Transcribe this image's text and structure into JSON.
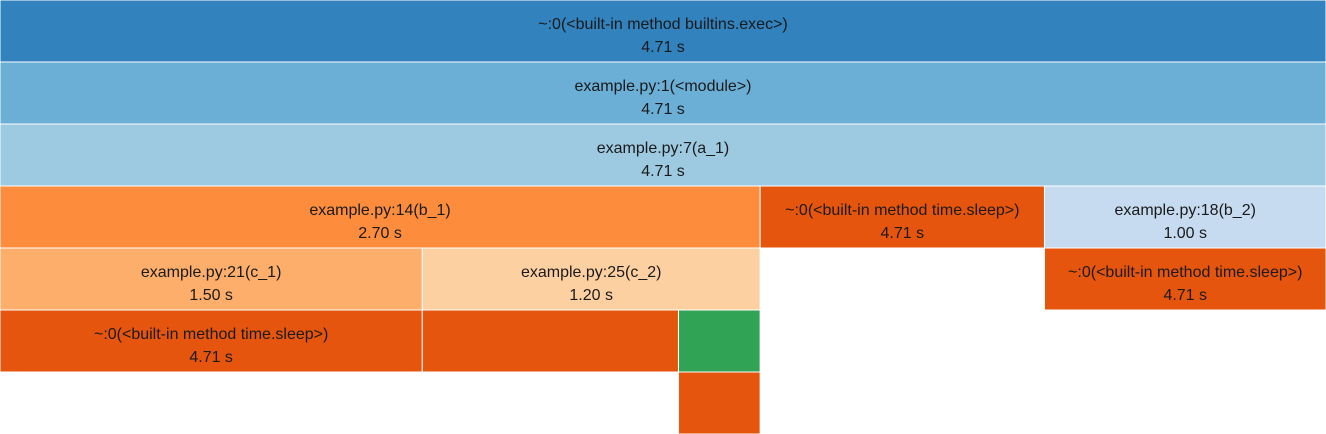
{
  "chart_data": {
    "type": "icicle",
    "value_unit": "s",
    "nodes": [
      {
        "id": "n0",
        "parent": null,
        "depth": 0,
        "start": 0.0,
        "end": 4.71,
        "name": "~:0(<built-in method builtins.exec>)",
        "time": "4.71 s",
        "color": "#3182bd"
      },
      {
        "id": "n1",
        "parent": "n0",
        "depth": 1,
        "start": 0.0,
        "end": 4.71,
        "name": "example.py:1(<module>)",
        "time": "4.71 s",
        "color": "#6baed6"
      },
      {
        "id": "n2",
        "parent": "n1",
        "depth": 2,
        "start": 0.0,
        "end": 4.71,
        "name": "example.py:7(a_1)",
        "time": "4.71 s",
        "color": "#9ecae1"
      },
      {
        "id": "n3",
        "parent": "n2",
        "depth": 3,
        "start": 0.0,
        "end": 2.7,
        "name": "example.py:14(b_1)",
        "time": "2.70 s",
        "color": "#fd8d3c"
      },
      {
        "id": "n4",
        "parent": "n2",
        "depth": 3,
        "start": 2.7,
        "end": 3.71,
        "name": "~:0(<built-in method time.sleep>)",
        "time": "4.71 s",
        "color": "#e6550d"
      },
      {
        "id": "n5",
        "parent": "n2",
        "depth": 3,
        "start": 3.71,
        "end": 4.71,
        "name": "example.py:18(b_2)",
        "time": "1.00 s",
        "color": "#c6dbef"
      },
      {
        "id": "n6",
        "parent": "n3",
        "depth": 4,
        "start": 0.0,
        "end": 1.5,
        "name": "example.py:21(c_1)",
        "time": "1.50 s",
        "color": "#fdae6b"
      },
      {
        "id": "n7",
        "parent": "n3",
        "depth": 4,
        "start": 1.5,
        "end": 2.7,
        "name": "example.py:25(c_2)",
        "time": "1.20 s",
        "color": "#fdd0a2"
      },
      {
        "id": "n8",
        "parent": "n5",
        "depth": 4,
        "start": 3.71,
        "end": 4.71,
        "name": "~:0(<built-in method time.sleep>)",
        "time": "4.71 s",
        "color": "#e6550d"
      },
      {
        "id": "n9",
        "parent": "n6",
        "depth": 5,
        "start": 0.0,
        "end": 1.5,
        "name": "~:0(<built-in method time.sleep>)",
        "time": "4.71 s",
        "color": "#e6550d"
      },
      {
        "id": "n10",
        "parent": "n7",
        "depth": 5,
        "start": 1.5,
        "end": 2.41,
        "name": "",
        "time": "",
        "color": "#e6550d"
      },
      {
        "id": "n11",
        "parent": "n7",
        "depth": 5,
        "start": 2.41,
        "end": 2.7,
        "name": "",
        "time": "",
        "color": "#31a354"
      },
      {
        "id": "n12",
        "parent": "n11",
        "depth": 6,
        "start": 2.41,
        "end": 2.7,
        "name": "",
        "time": "",
        "color": "#e6550d"
      }
    ]
  }
}
